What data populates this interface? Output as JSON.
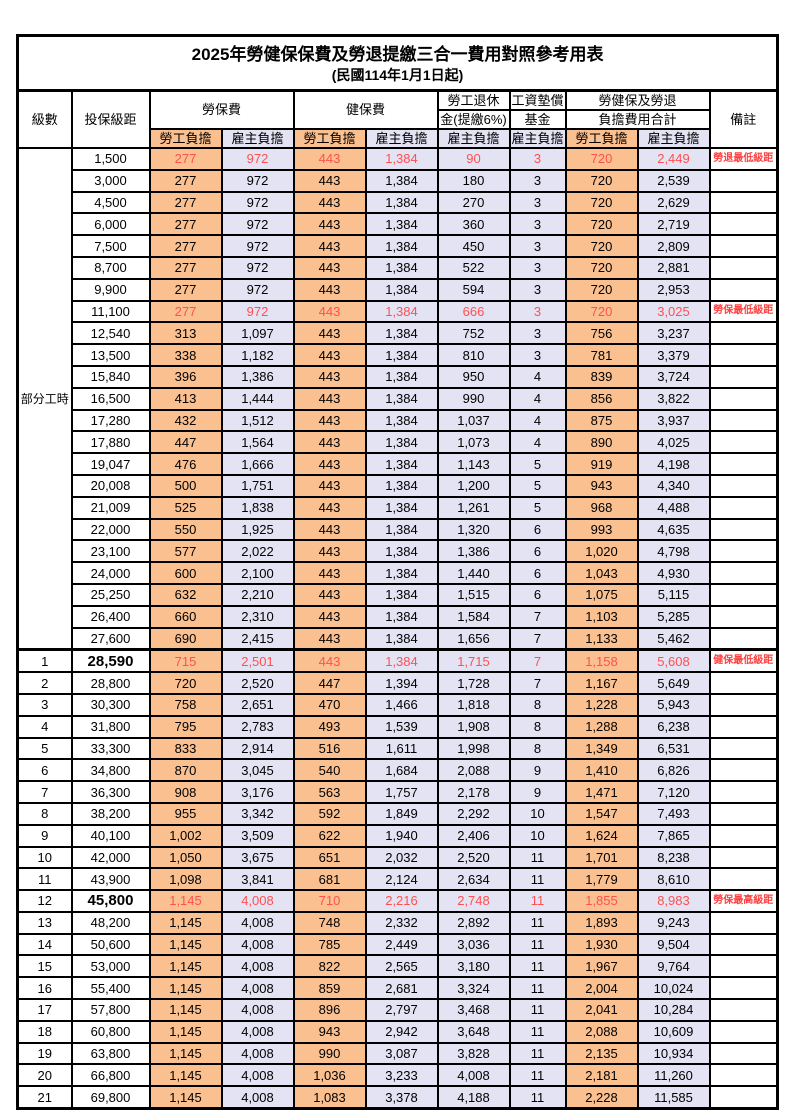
{
  "title": "2025年勞健保保費及勞退提繳三合一費用對照參考用表",
  "subtitle": "(民國114年1月1日起)",
  "header": {
    "level": "級數",
    "bracket": "投保級距",
    "labor_fee": "勞保費",
    "health_fee": "健保費",
    "pension_line1": "勞工退休",
    "pension_line2": "金(提繳6%)",
    "wage_fund_line1": "工資墊償",
    "wage_fund_line2": "基金",
    "total_line1": "勞健保及勞退",
    "total_line2": "負擔費用合計",
    "remark": "備註",
    "employee_burden": "勞工負擔",
    "employer_burden": "雇主負擔"
  },
  "part_time_label": "部分工時",
  "colors": {
    "employee_bg": "#FAC090",
    "employer_bg": "#E3E3F4",
    "highlight_red": "#FF5050",
    "remark_red": "#FF4040"
  },
  "table": {
    "part_time_rowspan": 23,
    "rows": [
      {
        "level": "",
        "bracket": "1,500",
        "values": [
          "277",
          "972",
          "443",
          "1,384",
          "90",
          "3",
          "720",
          "2,449"
        ],
        "remark": "勞退最低級距",
        "red": true,
        "big": false,
        "thick_top": false
      },
      {
        "level": "",
        "bracket": "3,000",
        "values": [
          "277",
          "972",
          "443",
          "1,384",
          "180",
          "3",
          "720",
          "2,539"
        ],
        "remark": "",
        "red": false,
        "big": false,
        "thick_top": false
      },
      {
        "level": "",
        "bracket": "4,500",
        "values": [
          "277",
          "972",
          "443",
          "1,384",
          "270",
          "3",
          "720",
          "2,629"
        ],
        "remark": "",
        "red": false,
        "big": false,
        "thick_top": false
      },
      {
        "level": "",
        "bracket": "6,000",
        "values": [
          "277",
          "972",
          "443",
          "1,384",
          "360",
          "3",
          "720",
          "2,719"
        ],
        "remark": "",
        "red": false,
        "big": false,
        "thick_top": false
      },
      {
        "level": "",
        "bracket": "7,500",
        "values": [
          "277",
          "972",
          "443",
          "1,384",
          "450",
          "3",
          "720",
          "2,809"
        ],
        "remark": "",
        "red": false,
        "big": false,
        "thick_top": false
      },
      {
        "level": "",
        "bracket": "8,700",
        "values": [
          "277",
          "972",
          "443",
          "1,384",
          "522",
          "3",
          "720",
          "2,881"
        ],
        "remark": "",
        "red": false,
        "big": false,
        "thick_top": false
      },
      {
        "level": "",
        "bracket": "9,900",
        "values": [
          "277",
          "972",
          "443",
          "1,384",
          "594",
          "3",
          "720",
          "2,953"
        ],
        "remark": "",
        "red": false,
        "big": false,
        "thick_top": false
      },
      {
        "level": "",
        "bracket": "11,100",
        "values": [
          "277",
          "972",
          "443",
          "1,384",
          "666",
          "3",
          "720",
          "3,025"
        ],
        "remark": "勞保最低級距",
        "red": true,
        "big": false,
        "thick_top": false
      },
      {
        "level": "",
        "bracket": "12,540",
        "values": [
          "313",
          "1,097",
          "443",
          "1,384",
          "752",
          "3",
          "756",
          "3,237"
        ],
        "remark": "",
        "red": false,
        "big": false,
        "thick_top": false
      },
      {
        "level": "",
        "bracket": "13,500",
        "values": [
          "338",
          "1,182",
          "443",
          "1,384",
          "810",
          "3",
          "781",
          "3,379"
        ],
        "remark": "",
        "red": false,
        "big": false,
        "thick_top": false
      },
      {
        "level": "",
        "bracket": "15,840",
        "values": [
          "396",
          "1,386",
          "443",
          "1,384",
          "950",
          "4",
          "839",
          "3,724"
        ],
        "remark": "",
        "red": false,
        "big": false,
        "thick_top": false
      },
      {
        "level": "",
        "bracket": "16,500",
        "values": [
          "413",
          "1,444",
          "443",
          "1,384",
          "990",
          "4",
          "856",
          "3,822"
        ],
        "remark": "",
        "red": false,
        "big": false,
        "thick_top": false
      },
      {
        "level": "",
        "bracket": "17,280",
        "values": [
          "432",
          "1,512",
          "443",
          "1,384",
          "1,037",
          "4",
          "875",
          "3,937"
        ],
        "remark": "",
        "red": false,
        "big": false,
        "thick_top": false
      },
      {
        "level": "",
        "bracket": "17,880",
        "values": [
          "447",
          "1,564",
          "443",
          "1,384",
          "1,073",
          "4",
          "890",
          "4,025"
        ],
        "remark": "",
        "red": false,
        "big": false,
        "thick_top": false
      },
      {
        "level": "",
        "bracket": "19,047",
        "values": [
          "476",
          "1,666",
          "443",
          "1,384",
          "1,143",
          "5",
          "919",
          "4,198"
        ],
        "remark": "",
        "red": false,
        "big": false,
        "thick_top": false
      },
      {
        "level": "",
        "bracket": "20,008",
        "values": [
          "500",
          "1,751",
          "443",
          "1,384",
          "1,200",
          "5",
          "943",
          "4,340"
        ],
        "remark": "",
        "red": false,
        "big": false,
        "thick_top": false
      },
      {
        "level": "",
        "bracket": "21,009",
        "values": [
          "525",
          "1,838",
          "443",
          "1,384",
          "1,261",
          "5",
          "968",
          "4,488"
        ],
        "remark": "",
        "red": false,
        "big": false,
        "thick_top": false
      },
      {
        "level": "",
        "bracket": "22,000",
        "values": [
          "550",
          "1,925",
          "443",
          "1,384",
          "1,320",
          "6",
          "993",
          "4,635"
        ],
        "remark": "",
        "red": false,
        "big": false,
        "thick_top": false
      },
      {
        "level": "",
        "bracket": "23,100",
        "values": [
          "577",
          "2,022",
          "443",
          "1,384",
          "1,386",
          "6",
          "1,020",
          "4,798"
        ],
        "remark": "",
        "red": false,
        "big": false,
        "thick_top": false
      },
      {
        "level": "",
        "bracket": "24,000",
        "values": [
          "600",
          "2,100",
          "443",
          "1,384",
          "1,440",
          "6",
          "1,043",
          "4,930"
        ],
        "remark": "",
        "red": false,
        "big": false,
        "thick_top": false
      },
      {
        "level": "",
        "bracket": "25,250",
        "values": [
          "632",
          "2,210",
          "443",
          "1,384",
          "1,515",
          "6",
          "1,075",
          "5,115"
        ],
        "remark": "",
        "red": false,
        "big": false,
        "thick_top": false
      },
      {
        "level": "",
        "bracket": "26,400",
        "values": [
          "660",
          "2,310",
          "443",
          "1,384",
          "1,584",
          "7",
          "1,103",
          "5,285"
        ],
        "remark": "",
        "red": false,
        "big": false,
        "thick_top": false
      },
      {
        "level": "",
        "bracket": "27,600",
        "values": [
          "690",
          "2,415",
          "443",
          "1,384",
          "1,656",
          "7",
          "1,133",
          "5,462"
        ],
        "remark": "",
        "red": false,
        "big": false,
        "thick_top": false
      },
      {
        "level": "1",
        "bracket": "28,590",
        "values": [
          "715",
          "2,501",
          "443",
          "1,384",
          "1,715",
          "7",
          "1,158",
          "5,608"
        ],
        "remark": "健保最低級距",
        "red": true,
        "big": true,
        "thick_top": true
      },
      {
        "level": "2",
        "bracket": "28,800",
        "values": [
          "720",
          "2,520",
          "447",
          "1,394",
          "1,728",
          "7",
          "1,167",
          "5,649"
        ],
        "remark": "",
        "red": false,
        "big": false,
        "thick_top": false
      },
      {
        "level": "3",
        "bracket": "30,300",
        "values": [
          "758",
          "2,651",
          "470",
          "1,466",
          "1,818",
          "8",
          "1,228",
          "5,943"
        ],
        "remark": "",
        "red": false,
        "big": false,
        "thick_top": false
      },
      {
        "level": "4",
        "bracket": "31,800",
        "values": [
          "795",
          "2,783",
          "493",
          "1,539",
          "1,908",
          "8",
          "1,288",
          "6,238"
        ],
        "remark": "",
        "red": false,
        "big": false,
        "thick_top": false
      },
      {
        "level": "5",
        "bracket": "33,300",
        "values": [
          "833",
          "2,914",
          "516",
          "1,611",
          "1,998",
          "8",
          "1,349",
          "6,531"
        ],
        "remark": "",
        "red": false,
        "big": false,
        "thick_top": false
      },
      {
        "level": "6",
        "bracket": "34,800",
        "values": [
          "870",
          "3,045",
          "540",
          "1,684",
          "2,088",
          "9",
          "1,410",
          "6,826"
        ],
        "remark": "",
        "red": false,
        "big": false,
        "thick_top": false
      },
      {
        "level": "7",
        "bracket": "36,300",
        "values": [
          "908",
          "3,176",
          "563",
          "1,757",
          "2,178",
          "9",
          "1,471",
          "7,120"
        ],
        "remark": "",
        "red": false,
        "big": false,
        "thick_top": false
      },
      {
        "level": "8",
        "bracket": "38,200",
        "values": [
          "955",
          "3,342",
          "592",
          "1,849",
          "2,292",
          "10",
          "1,547",
          "7,493"
        ],
        "remark": "",
        "red": false,
        "big": false,
        "thick_top": false
      },
      {
        "level": "9",
        "bracket": "40,100",
        "values": [
          "1,002",
          "3,509",
          "622",
          "1,940",
          "2,406",
          "10",
          "1,624",
          "7,865"
        ],
        "remark": "",
        "red": false,
        "big": false,
        "thick_top": false
      },
      {
        "level": "10",
        "bracket": "42,000",
        "values": [
          "1,050",
          "3,675",
          "651",
          "2,032",
          "2,520",
          "11",
          "1,701",
          "8,238"
        ],
        "remark": "",
        "red": false,
        "big": false,
        "thick_top": false
      },
      {
        "level": "11",
        "bracket": "43,900",
        "values": [
          "1,098",
          "3,841",
          "681",
          "2,124",
          "2,634",
          "11",
          "1,779",
          "8,610"
        ],
        "remark": "",
        "red": false,
        "big": false,
        "thick_top": false
      },
      {
        "level": "12",
        "bracket": "45,800",
        "values": [
          "1,145",
          "4,008",
          "710",
          "2,216",
          "2,748",
          "11",
          "1,855",
          "8,983"
        ],
        "remark": "勞保最高級距",
        "red": true,
        "big": true,
        "thick_top": false
      },
      {
        "level": "13",
        "bracket": "48,200",
        "values": [
          "1,145",
          "4,008",
          "748",
          "2,332",
          "2,892",
          "11",
          "1,893",
          "9,243"
        ],
        "remark": "",
        "red": false,
        "big": false,
        "thick_top": false
      },
      {
        "level": "14",
        "bracket": "50,600",
        "values": [
          "1,145",
          "4,008",
          "785",
          "2,449",
          "3,036",
          "11",
          "1,930",
          "9,504"
        ],
        "remark": "",
        "red": false,
        "big": false,
        "thick_top": false
      },
      {
        "level": "15",
        "bracket": "53,000",
        "values": [
          "1,145",
          "4,008",
          "822",
          "2,565",
          "3,180",
          "11",
          "1,967",
          "9,764"
        ],
        "remark": "",
        "red": false,
        "big": false,
        "thick_top": false
      },
      {
        "level": "16",
        "bracket": "55,400",
        "values": [
          "1,145",
          "4,008",
          "859",
          "2,681",
          "3,324",
          "11",
          "2,004",
          "10,024"
        ],
        "remark": "",
        "red": false,
        "big": false,
        "thick_top": false
      },
      {
        "level": "17",
        "bracket": "57,800",
        "values": [
          "1,145",
          "4,008",
          "896",
          "2,797",
          "3,468",
          "11",
          "2,041",
          "10,284"
        ],
        "remark": "",
        "red": false,
        "big": false,
        "thick_top": false
      },
      {
        "level": "18",
        "bracket": "60,800",
        "values": [
          "1,145",
          "4,008",
          "943",
          "2,942",
          "3,648",
          "11",
          "2,088",
          "10,609"
        ],
        "remark": "",
        "red": false,
        "big": false,
        "thick_top": false
      },
      {
        "level": "19",
        "bracket": "63,800",
        "values": [
          "1,145",
          "4,008",
          "990",
          "3,087",
          "3,828",
          "11",
          "2,135",
          "10,934"
        ],
        "remark": "",
        "red": false,
        "big": false,
        "thick_top": false
      },
      {
        "level": "20",
        "bracket": "66,800",
        "values": [
          "1,145",
          "4,008",
          "1,036",
          "3,233",
          "4,008",
          "11",
          "2,181",
          "11,260"
        ],
        "remark": "",
        "red": false,
        "big": false,
        "thick_top": false
      },
      {
        "level": "21",
        "bracket": "69,800",
        "values": [
          "1,145",
          "4,008",
          "1,083",
          "3,378",
          "4,188",
          "11",
          "2,228",
          "11,585"
        ],
        "remark": "",
        "red": false,
        "big": false,
        "thick_top": false
      }
    ]
  }
}
